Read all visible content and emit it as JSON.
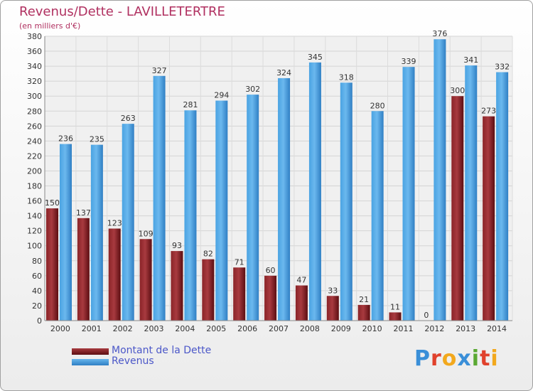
{
  "chart_data": {
    "type": "bar",
    "title": "Revenus/Dette - LAVILLETERTRE",
    "subtitle": "(en milliers d'€)",
    "categories": [
      "2000",
      "2001",
      "2002",
      "2003",
      "2004",
      "2005",
      "2006",
      "2007",
      "2008",
      "2009",
      "2010",
      "2011",
      "2012",
      "2013",
      "2014"
    ],
    "series": [
      {
        "name": "Montant de la Dette",
        "values": [
          150,
          137,
          123,
          109,
          93,
          82,
          71,
          60,
          47,
          33,
          21,
          11,
          0,
          300,
          273
        ]
      },
      {
        "name": "Revenus",
        "values": [
          236,
          235,
          263,
          327,
          281,
          294,
          302,
          324,
          345,
          318,
          280,
          339,
          376,
          341,
          332
        ]
      }
    ],
    "ylim": [
      0,
      380
    ],
    "ytick_step": 20,
    "grid": true,
    "legend_position": "bottom-left"
  },
  "colors": {
    "dette": "#6b1216",
    "dette_light": "#a83a3f",
    "revenus": "#3e92d6",
    "revenus_light": "#67b6ec",
    "title": "#b03060",
    "legend_text": "#4b57c8"
  },
  "logo": {
    "text": "Proxiti"
  }
}
